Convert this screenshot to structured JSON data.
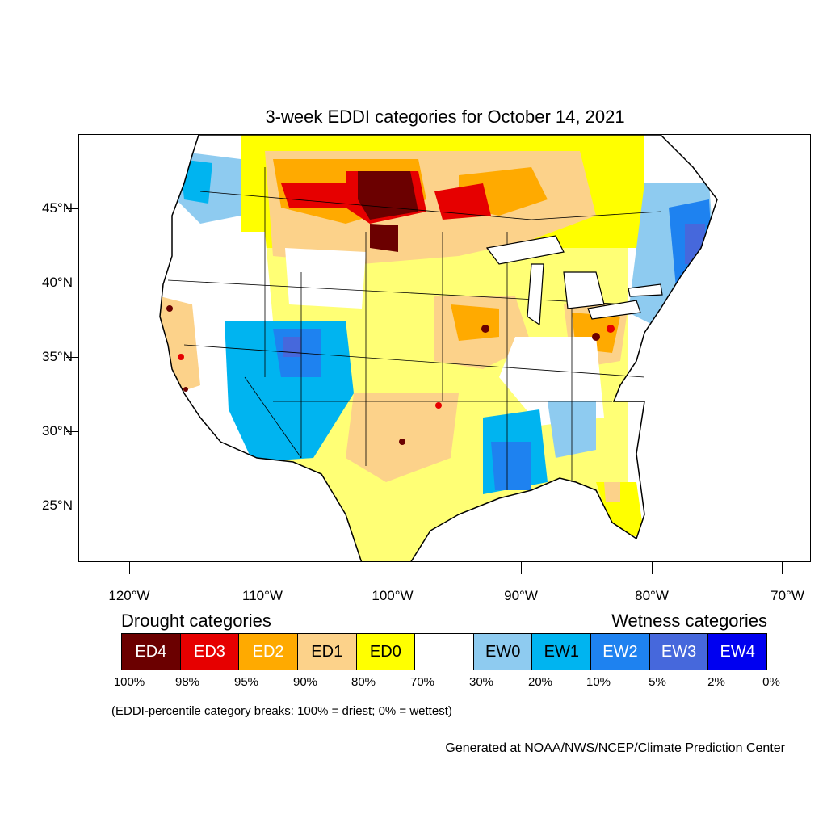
{
  "title": "3-week EDDI categories for October 14, 2021",
  "lat_labels": [
    "45°N",
    "40°N",
    "35°N",
    "30°N",
    "25°N"
  ],
  "lon_labels": [
    "120°W",
    "110°W",
    "100°W",
    "90°W",
    "80°W",
    "70°W"
  ],
  "legend": {
    "drought_heading": "Drought categories",
    "wetness_heading": "Wetness categories",
    "categories": [
      {
        "label": "ED4",
        "color": "#6b0000",
        "text_color": "#ffffff"
      },
      {
        "label": "ED3",
        "color": "#e60000",
        "text_color": "#ffffff"
      },
      {
        "label": "ED2",
        "color": "#ffaa00",
        "text_color": "#ffffff"
      },
      {
        "label": "ED1",
        "color": "#fcd28a",
        "text_color": "#000000"
      },
      {
        "label": "ED0",
        "color": "#ffff00",
        "text_color": "#000000"
      },
      {
        "label": "",
        "color": "#ffffff",
        "text_color": "#000000"
      },
      {
        "label": "EW0",
        "color": "#8ecbf0",
        "text_color": "#000000"
      },
      {
        "label": "EW1",
        "color": "#00b4f0",
        "text_color": "#000000"
      },
      {
        "label": "EW2",
        "color": "#1e82f0",
        "text_color": "#ffffff"
      },
      {
        "label": "EW3",
        "color": "#4668dc",
        "text_color": "#ffffff"
      },
      {
        "label": "EW4",
        "color": "#0000f0",
        "text_color": "#ffffff"
      }
    ],
    "breaks": [
      "100%",
      "98%",
      "95%",
      "90%",
      "80%",
      "70%",
      "30%",
      "20%",
      "10%",
      "5%",
      "2%",
      "0%"
    ]
  },
  "note": "(EDDI-percentile category breaks: 100% = driest; 0% = wettest)",
  "credit": "Generated at NOAA/NWS/NCEP/Climate Prediction Center"
}
